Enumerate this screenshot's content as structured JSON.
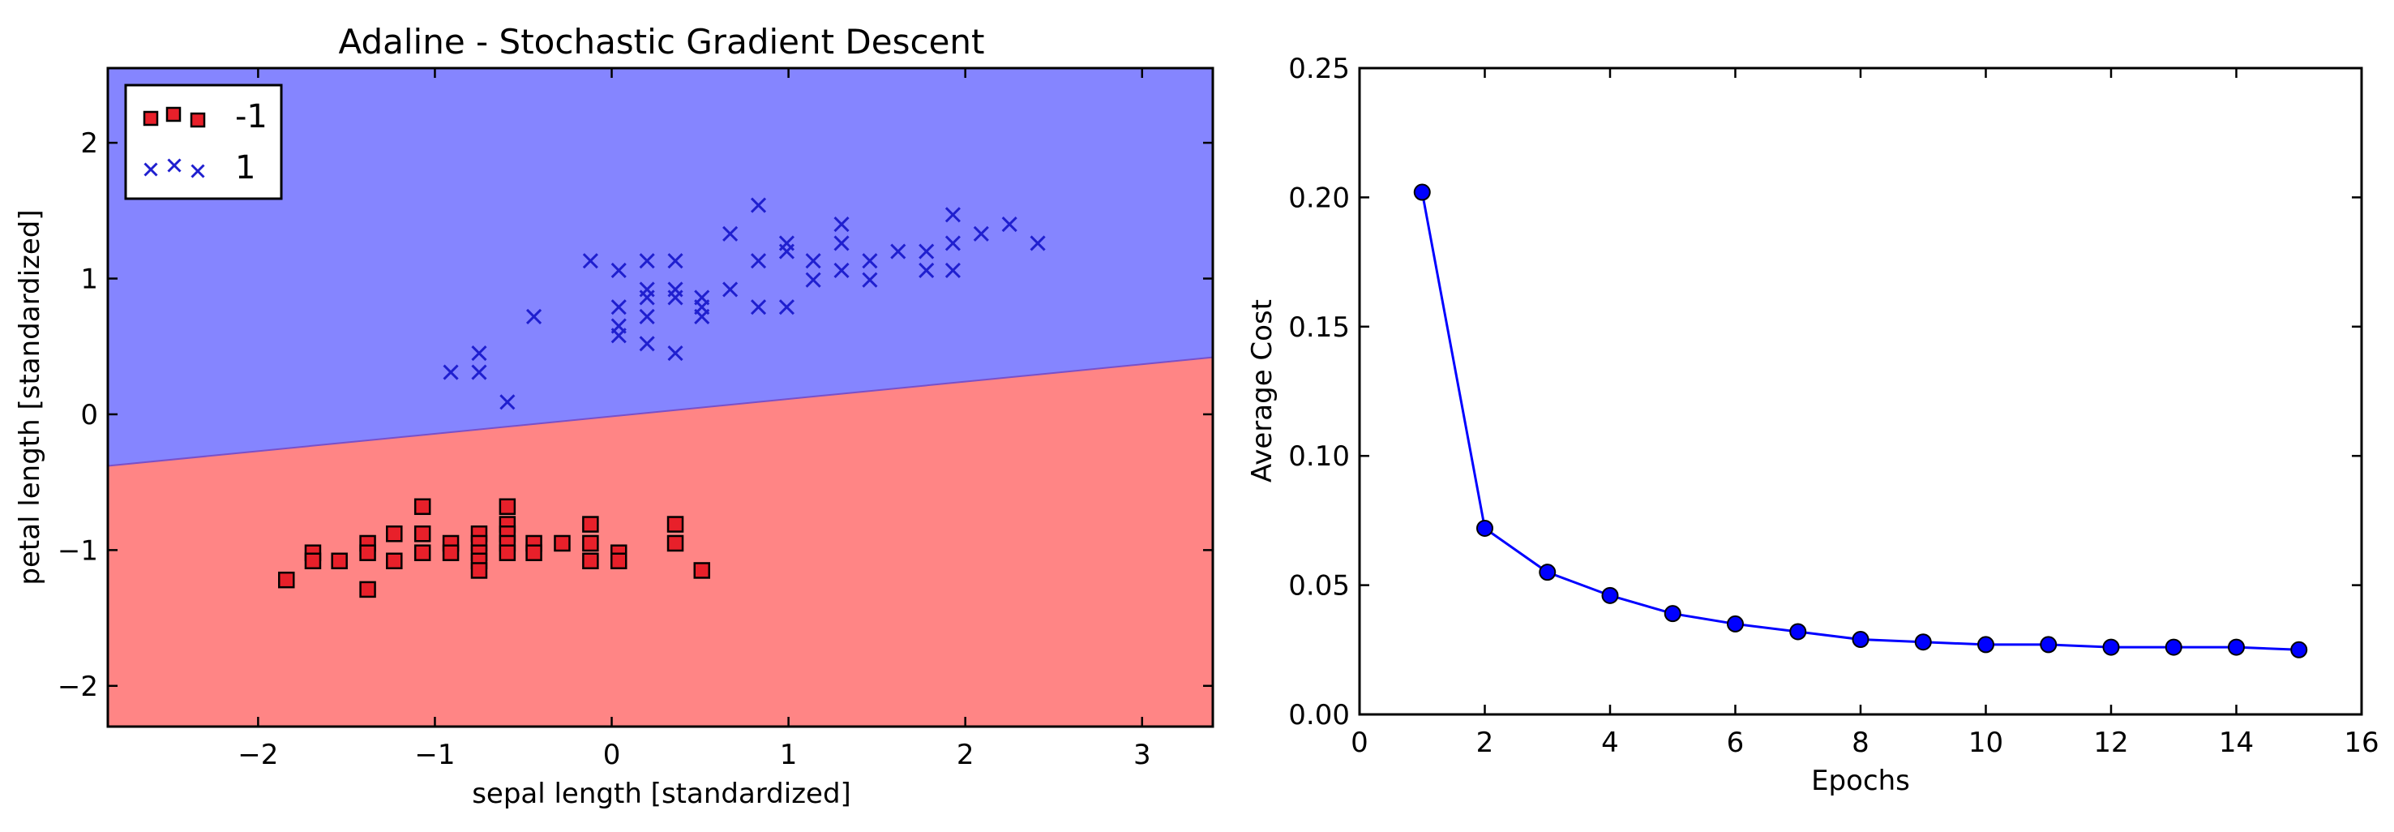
{
  "chart_data": [
    {
      "type": "scatter",
      "title": "Adaline - Stochastic Gradient Descent",
      "xlabel": "sepal length [standardized]",
      "ylabel": "petal length [standardized]",
      "xlim": [
        -2.85,
        3.4
      ],
      "ylim": [
        -2.3,
        2.55
      ],
      "xticks": [
        -2,
        -1,
        0,
        1,
        2,
        3
      ],
      "yticks": [
        -2,
        -1,
        0,
        1,
        2
      ],
      "xtick_labels": [
        "−2",
        "−1",
        "0",
        "1",
        "2",
        "3"
      ],
      "ytick_labels": [
        "−2",
        "−1",
        "0",
        "1",
        "2"
      ],
      "grid": false,
      "legend_position": "top-left",
      "decision_boundary": {
        "x": [
          -2.85,
          3.4
        ],
        "y": [
          -0.38,
          0.42
        ]
      },
      "regions": [
        {
          "class": "1",
          "side": "above",
          "color": "#8585ff"
        },
        {
          "class": "-1",
          "side": "below",
          "color": "#ff8585"
        }
      ],
      "series": [
        {
          "name": "-1",
          "marker": "square",
          "color": "#e8202a",
          "points": [
            [
              -1.84,
              -1.22
            ],
            [
              -1.69,
              -1.02
            ],
            [
              -1.69,
              -1.08
            ],
            [
              -1.54,
              -1.08
            ],
            [
              -1.38,
              -0.95
            ],
            [
              -1.38,
              -1.02
            ],
            [
              -1.38,
              -1.29
            ],
            [
              -1.23,
              -0.88
            ],
            [
              -1.23,
              -1.08
            ],
            [
              -1.07,
              -0.68
            ],
            [
              -1.07,
              -0.88
            ],
            [
              -1.07,
              -1.02
            ],
            [
              -0.91,
              -0.95
            ],
            [
              -0.91,
              -1.02
            ],
            [
              -0.75,
              -0.88
            ],
            [
              -0.75,
              -0.95
            ],
            [
              -0.75,
              -1.02
            ],
            [
              -0.75,
              -1.08
            ],
            [
              -0.75,
              -1.15
            ],
            [
              -0.59,
              -0.68
            ],
            [
              -0.59,
              -0.81
            ],
            [
              -0.59,
              -0.88
            ],
            [
              -0.59,
              -0.95
            ],
            [
              -0.59,
              -1.02
            ],
            [
              -0.44,
              -0.95
            ],
            [
              -0.44,
              -1.02
            ],
            [
              -0.28,
              -0.95
            ],
            [
              -0.12,
              -0.81
            ],
            [
              -0.12,
              -0.95
            ],
            [
              -0.12,
              -1.08
            ],
            [
              0.04,
              -1.02
            ],
            [
              0.04,
              -1.08
            ],
            [
              0.36,
              -0.81
            ],
            [
              0.36,
              -0.95
            ],
            [
              0.51,
              -1.15
            ]
          ]
        },
        {
          "name": "1",
          "marker": "x",
          "color": "#1f1fcf",
          "points": [
            [
              -0.91,
              0.31
            ],
            [
              -0.75,
              0.45
            ],
            [
              -0.75,
              0.31
            ],
            [
              -0.59,
              0.09
            ],
            [
              -0.44,
              0.72
            ],
            [
              -0.12,
              1.13
            ],
            [
              0.04,
              1.06
            ],
            [
              0.04,
              0.79
            ],
            [
              0.04,
              0.65
            ],
            [
              0.04,
              0.58
            ],
            [
              0.2,
              1.13
            ],
            [
              0.2,
              0.92
            ],
            [
              0.2,
              0.86
            ],
            [
              0.2,
              0.72
            ],
            [
              0.2,
              0.52
            ],
            [
              0.36,
              1.13
            ],
            [
              0.36,
              0.92
            ],
            [
              0.36,
              0.86
            ],
            [
              0.36,
              0.45
            ],
            [
              0.51,
              0.86
            ],
            [
              0.51,
              0.79
            ],
            [
              0.51,
              0.72
            ],
            [
              0.67,
              1.33
            ],
            [
              0.67,
              0.92
            ],
            [
              0.83,
              1.54
            ],
            [
              0.83,
              1.13
            ],
            [
              0.83,
              0.79
            ],
            [
              0.99,
              1.26
            ],
            [
              0.99,
              1.2
            ],
            [
              0.99,
              0.79
            ],
            [
              1.14,
              1.13
            ],
            [
              1.14,
              0.99
            ],
            [
              1.3,
              1.4
            ],
            [
              1.3,
              1.26
            ],
            [
              1.3,
              1.06
            ],
            [
              1.46,
              1.13
            ],
            [
              1.46,
              0.99
            ],
            [
              1.62,
              1.2
            ],
            [
              1.78,
              1.2
            ],
            [
              1.78,
              1.06
            ],
            [
              1.93,
              1.47
            ],
            [
              1.93,
              1.26
            ],
            [
              1.93,
              1.06
            ],
            [
              2.09,
              1.33
            ],
            [
              2.25,
              1.4
            ],
            [
              2.41,
              1.26
            ]
          ]
        }
      ]
    },
    {
      "type": "line",
      "title": "",
      "xlabel": "Epochs",
      "ylabel": "Average Cost",
      "xlim": [
        0,
        16
      ],
      "ylim": [
        0,
        0.25
      ],
      "xticks": [
        0,
        2,
        4,
        6,
        8,
        10,
        12,
        14,
        16
      ],
      "yticks": [
        0,
        0.05,
        0.1,
        0.15,
        0.2,
        0.25
      ],
      "xtick_labels": [
        "0",
        "2",
        "4",
        "6",
        "8",
        "10",
        "12",
        "14",
        "16"
      ],
      "ytick_labels": [
        "0.00",
        "0.05",
        "0.10",
        "0.15",
        "0.20",
        "0.25"
      ],
      "grid": false,
      "marker": "circle",
      "line_color": "#0000ff",
      "marker_color": "#0000ff",
      "x": [
        1,
        2,
        3,
        4,
        5,
        6,
        7,
        8,
        9,
        10,
        11,
        12,
        13,
        14,
        15
      ],
      "y": [
        0.202,
        0.072,
        0.055,
        0.046,
        0.039,
        0.035,
        0.032,
        0.029,
        0.028,
        0.027,
        0.027,
        0.026,
        0.026,
        0.026,
        0.025
      ]
    }
  ]
}
